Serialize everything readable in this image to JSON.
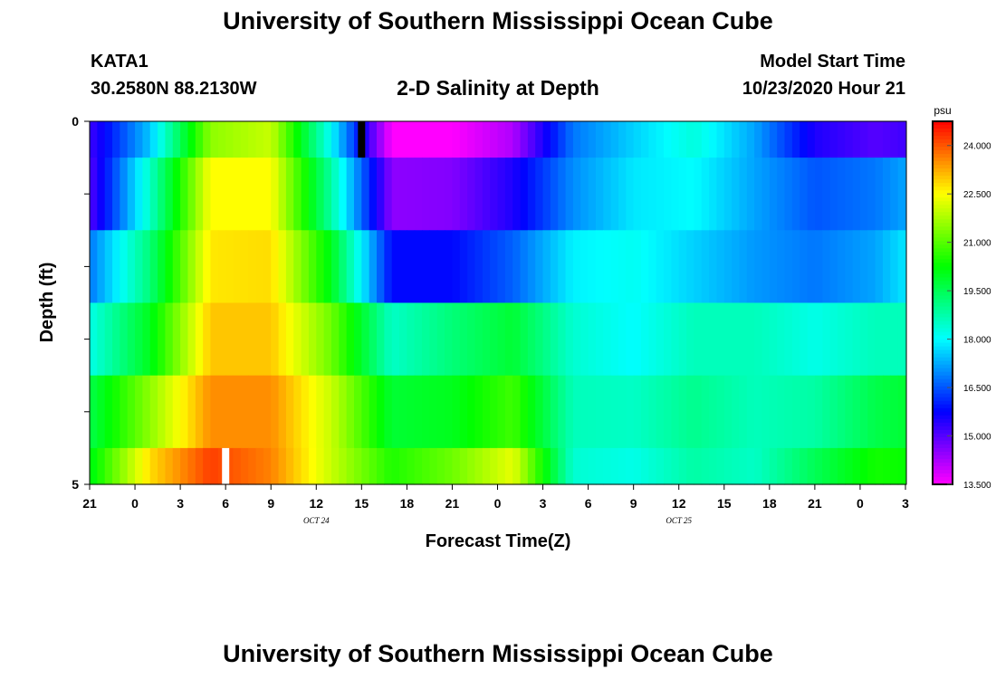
{
  "header": {
    "title": "University of Southern Mississippi Ocean Cube",
    "footer_title": "University of Southern Mississippi Ocean Cube",
    "station_id": "KATA1",
    "coordinates": "30.2580N 88.2130W",
    "plot_title": "2-D Salinity at Depth",
    "model_start_label": "Model Start Time",
    "model_start_value": "10/23/2020 Hour 21"
  },
  "colors": {
    "background": "#ffffff",
    "marker_top": "#000000",
    "marker_bottom": "#ffffff"
  },
  "chart_data": {
    "type": "heatmap",
    "title": "2-D Salinity at Depth",
    "xlabel": "Forecast Time(Z)",
    "ylabel": "Depth (ft)",
    "x_ticks": [
      "21",
      "0",
      "3",
      "6",
      "9",
      "12",
      "15",
      "18",
      "21",
      "0",
      "3",
      "6",
      "9",
      "12",
      "15",
      "18",
      "21",
      "0",
      "3"
    ],
    "x_hours": [
      0,
      3,
      6,
      9,
      12,
      15,
      18,
      21,
      24,
      27,
      30,
      33,
      36,
      39,
      42,
      45,
      48,
      51,
      54
    ],
    "x_range": [
      0,
      54
    ],
    "date_labels": [
      {
        "text": "OCT 24",
        "hour": 15
      },
      {
        "text": "OCT 25",
        "hour": 39
      }
    ],
    "y_tick_labels": [
      {
        "text": "0",
        "depth": 0
      },
      {
        "text": "5",
        "depth": 5
      }
    ],
    "y_range": [
      0,
      5
    ],
    "depth_layers": [
      0,
      1,
      2,
      3,
      4,
      5
    ],
    "colorbar": {
      "units": "psu",
      "min": 13.5,
      "max": 24.75,
      "ticks": [
        "24.000",
        "22.500",
        "21.000",
        "19.500",
        "18.000",
        "16.500",
        "15.000",
        "13.500"
      ],
      "tick_values": [
        24.0,
        22.5,
        21.0,
        19.5,
        18.0,
        16.5,
        15.0,
        13.5
      ]
    },
    "series": [
      {
        "name": "depth 0",
        "hours": [
          0,
          4,
          8,
          12,
          16,
          20,
          24,
          28,
          32,
          36,
          40,
          44,
          48,
          52,
          54
        ],
        "values": [
          15.2,
          17.5,
          21.5,
          22.0,
          18.0,
          13.5,
          13.5,
          14.2,
          16.8,
          17.6,
          18.3,
          17.2,
          15.5,
          15.0,
          15.2
        ]
      },
      {
        "name": "depth 1",
        "hours": [
          0,
          4,
          8,
          12,
          16,
          20,
          24,
          28,
          32,
          36,
          40,
          44,
          48,
          52,
          54
        ],
        "values": [
          15.0,
          18.5,
          22.5,
          22.5,
          18.8,
          14.5,
          14.6,
          15.5,
          17.0,
          17.8,
          18.0,
          17.2,
          16.5,
          16.8,
          17.2
        ]
      },
      {
        "name": "depth 2",
        "hours": [
          0,
          4,
          8,
          12,
          16,
          20,
          24,
          28,
          32,
          36,
          40,
          44,
          48,
          52,
          54
        ],
        "values": [
          16.8,
          19.2,
          22.7,
          22.8,
          20.0,
          15.8,
          15.8,
          16.6,
          17.9,
          18.1,
          17.6,
          17.1,
          16.8,
          17.2,
          17.8
        ]
      },
      {
        "name": "depth 3",
        "hours": [
          0,
          4,
          8,
          12,
          16,
          20,
          24,
          28,
          32,
          36,
          40,
          44,
          48,
          52,
          54
        ],
        "values": [
          18.2,
          20.0,
          23.0,
          23.0,
          21.2,
          18.5,
          19.2,
          19.8,
          18.4,
          18.0,
          18.6,
          18.6,
          18.2,
          18.6,
          18.6
        ]
      },
      {
        "name": "depth 4",
        "hours": [
          0,
          4,
          8,
          12,
          16,
          20,
          24,
          28,
          32,
          36,
          40,
          44,
          48,
          52,
          54
        ],
        "values": [
          19.6,
          21.5,
          23.5,
          23.5,
          22.0,
          19.8,
          20.0,
          20.8,
          18.6,
          18.5,
          19.0,
          18.6,
          18.8,
          19.6,
          19.8
        ]
      },
      {
        "name": "depth 5",
        "hours": [
          0,
          4,
          8,
          12,
          16,
          20,
          24,
          28,
          32,
          36,
          40,
          44,
          48,
          52,
          54
        ],
        "values": [
          20.0,
          22.8,
          24.2,
          23.6,
          22.0,
          20.5,
          21.2,
          22.3,
          18.4,
          18.2,
          18.8,
          18.5,
          19.5,
          20.4,
          20.3
        ]
      }
    ],
    "markers": [
      {
        "name": "marker-top",
        "depth_layer": 0,
        "hour": 18
      },
      {
        "name": "marker-bottom",
        "depth_layer": 5,
        "hour": 9
      }
    ]
  }
}
